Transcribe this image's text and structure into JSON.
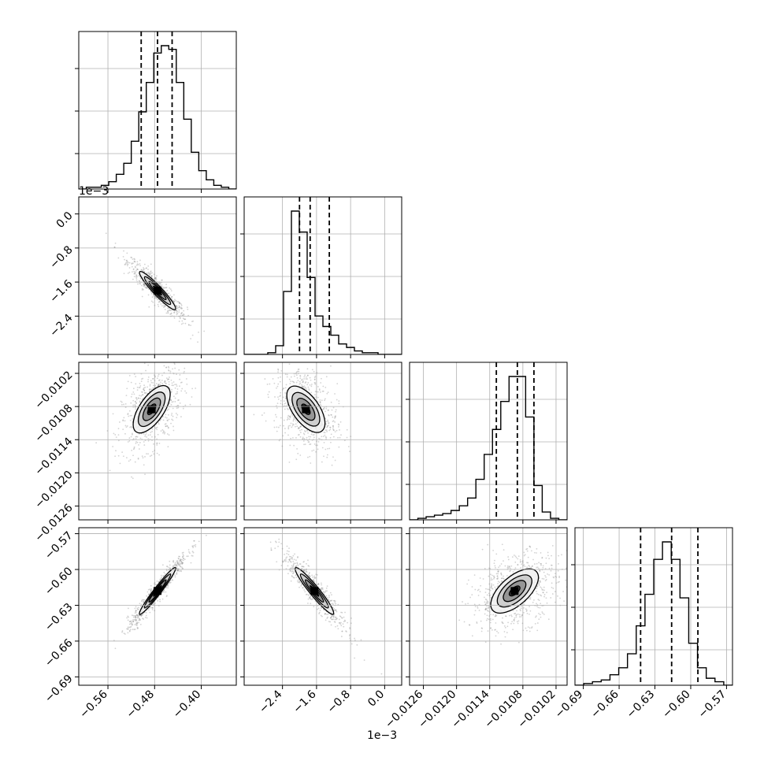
{
  "chart_data": {
    "type": "corner",
    "parameters": 4,
    "colors": {
      "hist": "#000000",
      "grid": "#b0b0b0",
      "scatter": "#808080",
      "quantile": "#000000"
    },
    "grid": true,
    "axis_offsets": {
      "param1": "1e−3",
      "param2": "1e−3"
    },
    "params": [
      {
        "range": [
          -0.61,
          -0.34
        ],
        "ticks": [
          -0.56,
          -0.48,
          -0.4
        ],
        "tick_labels": [
          "−0.56",
          "−0.48",
          "−0.40"
        ],
        "quantiles": [
          -0.503,
          -0.475,
          -0.45
        ]
      },
      {
        "range": [
          -3.3,
          0.4
        ],
        "ticks": [
          -2.4,
          -1.6,
          -0.8,
          0.0
        ],
        "tick_labels": [
          "−2.4",
          "−1.6",
          "−0.8",
          "0.0"
        ],
        "quantiles": [
          -2.0,
          -1.75,
          -1.3
        ]
      },
      {
        "range": [
          -0.01285,
          -0.01
        ],
        "ticks": [
          -0.0126,
          -0.012,
          -0.0114,
          -0.0108,
          -0.0102
        ],
        "tick_labels": [
          "−0.0126",
          "−0.0120",
          "−0.0114",
          "−0.0108",
          "−0.0102"
        ],
        "quantiles": [
          -0.01128,
          -0.0109,
          -0.0106
        ]
      },
      {
        "range": [
          -0.697,
          -0.565
        ],
        "ticks": [
          -0.69,
          -0.66,
          -0.63,
          -0.6,
          -0.57
        ],
        "tick_labels": [
          "−0.69",
          "−0.66",
          "−0.63",
          "−0.60",
          "−0.57"
        ],
        "quantiles": [
          -0.642,
          -0.616,
          -0.594
        ]
      }
    ],
    "histograms": [
      [
        0,
        1,
        1,
        2,
        4,
        8,
        14,
        26,
        42,
        58,
        74,
        78,
        76,
        58,
        38,
        20,
        10,
        5,
        2,
        1,
        0
      ],
      [
        0,
        0,
        0,
        1,
        5,
        36,
        82,
        70,
        44,
        22,
        16,
        11,
        6,
        4,
        2,
        1,
        1,
        0,
        0,
        0
      ],
      [
        0,
        1,
        2,
        3,
        4,
        6,
        9,
        14,
        26,
        42,
        58,
        76,
        92,
        92,
        66,
        22,
        5,
        1,
        0
      ],
      [
        0,
        1,
        2,
        3,
        6,
        10,
        18,
        34,
        52,
        72,
        82,
        72,
        50,
        24,
        10,
        4,
        2,
        0
      ]
    ],
    "pairs": [
      {
        "row": 1,
        "col": 0,
        "center": [
          -0.475,
          -1.8
        ],
        "sigma": [
          0.022,
          0.32
        ],
        "rho": -0.92
      },
      {
        "row": 2,
        "col": 0,
        "center": [
          -0.485,
          -0.01085
        ],
        "sigma": [
          0.022,
          0.00034
        ],
        "rho": 0.45
      },
      {
        "row": 2,
        "col": 1,
        "center": [
          -1.85,
          -0.01085
        ],
        "sigma": [
          0.32,
          0.00034
        ],
        "rho": -0.35
      },
      {
        "row": 3,
        "col": 0,
        "center": [
          -0.475,
          -0.618
        ],
        "sigma": [
          0.022,
          0.014
        ],
        "rho": 0.96
      },
      {
        "row": 3,
        "col": 1,
        "center": [
          -1.65,
          -0.618
        ],
        "sigma": [
          0.32,
          0.014
        ],
        "rho": -0.93
      },
      {
        "row": 3,
        "col": 2,
        "center": [
          -0.01095,
          -0.618
        ],
        "sigma": [
          0.00034,
          0.014
        ],
        "rho": 0.35
      }
    ]
  }
}
